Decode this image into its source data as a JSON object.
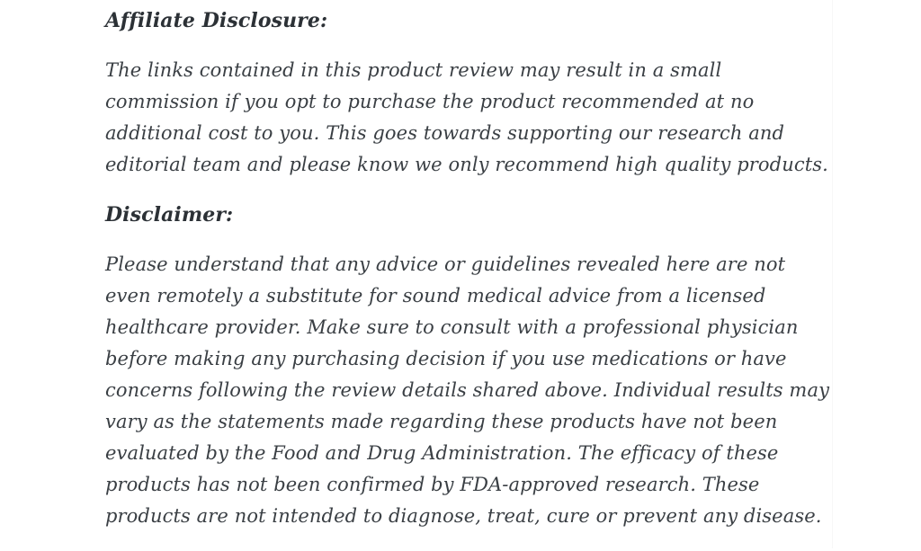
{
  "page": {
    "background_color": "#ffffff",
    "body_text_color": "#3a3f44",
    "heading_text_color": "#2c3136"
  },
  "content": {
    "sections": [
      {
        "heading": "Affiliate Disclosure:",
        "body": "The links contained in this product review may result in a small commission if you opt to purchase the product recommended at no additional cost to you. This goes towards supporting our research and editorial team and please know we only recommend high quality products."
      },
      {
        "heading": "Disclaimer:",
        "body": "Please understand that any advice or guidelines revealed here are not even remotely a substitute for sound medical advice from a licensed healthcare provider. Make sure to consult with a professional physician before making any purchasing decision if you use medications or have concerns following the review details shared above. Individual results may vary as the statements made regarding these products have not been evaluated by the Food and Drug Administration. The efficacy of these products has not been confirmed by FDA-approved research. These products are not intended to diagnose, treat, cure or prevent any disease."
      }
    ]
  }
}
